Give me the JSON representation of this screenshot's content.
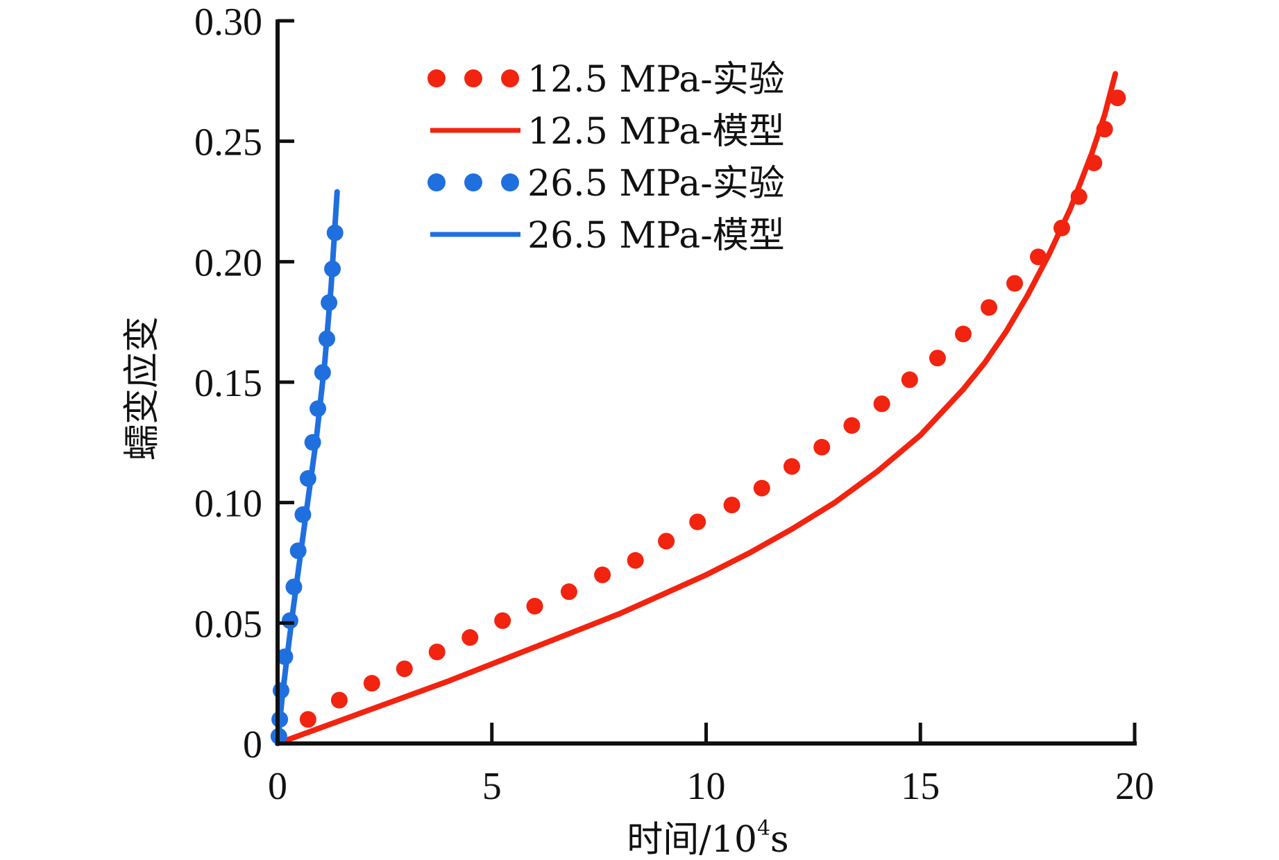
{
  "chart_data": {
    "type": "line",
    "title": "",
    "xlabel": "时间/10^4s",
    "xlabel_main": "时间/10",
    "xlabel_sup": "4",
    "xlabel_unit": "s",
    "ylabel": "蠕变应变",
    "xlim": [
      0,
      20
    ],
    "ylim": [
      0,
      0.3
    ],
    "xticks": [
      0,
      5,
      10,
      15,
      20
    ],
    "xtick_labels": [
      "0",
      "5",
      "10",
      "15",
      "20"
    ],
    "yticks": [
      0,
      0.05,
      0.1,
      0.15,
      0.2,
      0.25,
      0.3
    ],
    "ytick_labels": [
      "0",
      "0.05",
      "0.10",
      "0.15",
      "0.20",
      "0.25",
      "0.30"
    ],
    "grid": false,
    "legend_position": "top-center",
    "series": [
      {
        "name": "12.5 MPa-实验",
        "kind": "scatter",
        "color": "#f2230f",
        "x": [
          0.71,
          1.44,
          2.2,
          2.96,
          3.72,
          4.49,
          5.25,
          6.0,
          6.8,
          7.58,
          8.35,
          9.07,
          9.8,
          10.6,
          11.3,
          12.0,
          12.7,
          13.4,
          14.1,
          14.75,
          15.4,
          16.0,
          16.6,
          17.2,
          17.75,
          18.3,
          18.7,
          19.05,
          19.3,
          19.6
        ],
        "y": [
          0.01,
          0.018,
          0.025,
          0.031,
          0.038,
          0.044,
          0.051,
          0.057,
          0.063,
          0.07,
          0.076,
          0.084,
          0.092,
          0.099,
          0.106,
          0.115,
          0.123,
          0.132,
          0.141,
          0.151,
          0.16,
          0.17,
          0.181,
          0.191,
          0.202,
          0.214,
          0.227,
          0.241,
          0.255,
          0.268
        ]
      },
      {
        "name": "12.5 MPa-模型",
        "kind": "line",
        "color": "#f2230f",
        "x": [
          0,
          1,
          2,
          3,
          4,
          5,
          6,
          7,
          8,
          9,
          10,
          11,
          12,
          13,
          14,
          15,
          16,
          16.5,
          17,
          17.5,
          18,
          18.5,
          19,
          19.3,
          19.55
        ],
        "y": [
          0,
          0.0065,
          0.013,
          0.0195,
          0.026,
          0.033,
          0.04,
          0.047,
          0.054,
          0.062,
          0.07,
          0.079,
          0.089,
          0.1,
          0.113,
          0.128,
          0.147,
          0.158,
          0.171,
          0.186,
          0.203,
          0.222,
          0.245,
          0.261,
          0.278
        ]
      },
      {
        "name": "26.5 MPa-实验",
        "kind": "scatter",
        "color": "#1f6fdf",
        "x": [
          0.03,
          0.05,
          0.08,
          0.17,
          0.29,
          0.38,
          0.48,
          0.59,
          0.71,
          0.82,
          0.94,
          1.05,
          1.15,
          1.2,
          1.28,
          1.34
        ],
        "y": [
          0.003,
          0.01,
          0.022,
          0.036,
          0.051,
          0.065,
          0.08,
          0.095,
          0.11,
          0.125,
          0.139,
          0.154,
          0.168,
          0.183,
          0.197,
          0.212
        ]
      },
      {
        "name": "26.5 MPa-模型",
        "kind": "line",
        "color": "#1f6fdf",
        "x": [
          0,
          0.1,
          0.2,
          0.35,
          0.5,
          0.7,
          0.9,
          1.1,
          1.25,
          1.39
        ],
        "y": [
          0,
          0.018,
          0.033,
          0.054,
          0.074,
          0.1,
          0.126,
          0.158,
          0.19,
          0.229
        ]
      }
    ]
  }
}
